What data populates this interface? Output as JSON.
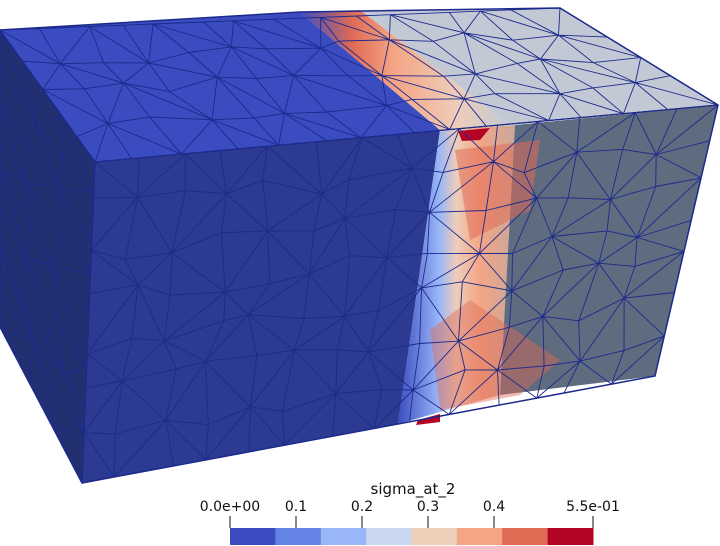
{
  "render_view": {
    "scalar_field": "sigma_at_2"
  },
  "colorbar": {
    "title": "sigma_at_2",
    "range": [
      0.0,
      0.55
    ],
    "tick_labels": [
      "0.0e+00",
      "0.1",
      "0.2",
      "0.3",
      "0.4",
      "5.5e-01"
    ],
    "tick_values": [
      0.0,
      0.1,
      0.2,
      0.3,
      0.4,
      0.55
    ],
    "colors": [
      "#3b4cc0",
      "#6384e6",
      "#99b6f8",
      "#c9d8ee",
      "#eecdb9",
      "#f4a585",
      "#e06b55",
      "#b40426"
    ]
  },
  "colors": {
    "mesh_edge": "#1c2a8c",
    "low_field": "#3b4cc0",
    "low_field_shaded": "#2c3a91",
    "side_face_dark": "#222f70",
    "high_field_gray": "#5f6b7f",
    "top_light": "#c3c9d4"
  }
}
